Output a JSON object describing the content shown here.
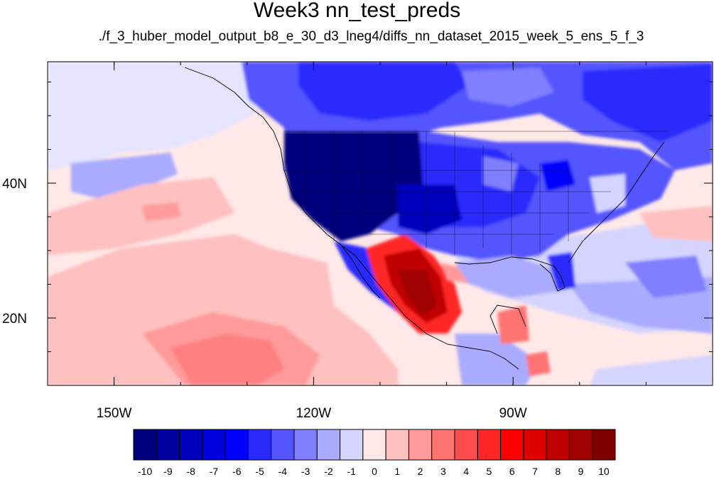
{
  "title": "Week3 nn_test_preds",
  "subtitle": "./f_3_huber_model_output_b8_e_30_d3_lneg4/diffs_nn_dataset_2015_week_5_ens_5_f_3",
  "map": {
    "lon_range": [
      -160,
      -60
    ],
    "lat_range": [
      10,
      58
    ],
    "x_tick_labels": [
      {
        "lon": -150,
        "label": "150W"
      },
      {
        "lon": -120,
        "label": "120W"
      },
      {
        "lon": -90,
        "label": "90W"
      }
    ],
    "y_tick_labels": [
      {
        "lat": 40,
        "label": "40N"
      },
      {
        "lat": 20,
        "label": "20N"
      }
    ]
  },
  "colorbar": {
    "labels": [
      "-10",
      "-9",
      "-8",
      "-7",
      "-6",
      "-5",
      "-4",
      "-3",
      "-2",
      "-1",
      "0",
      "1",
      "2",
      "3",
      "4",
      "5",
      "6",
      "7",
      "8",
      "9",
      "10"
    ],
    "colors": [
      "#00007f",
      "#00009f",
      "#0000bf",
      "#0000df",
      "#0000ff",
      "#2a2aff",
      "#5555ff",
      "#7f7fff",
      "#aaaaff",
      "#d4d4ff",
      "#ffe8e8",
      "#ffc0c0",
      "#ff9a9a",
      "#ff7373",
      "#ff4d4d",
      "#ff2626",
      "#ff0000",
      "#df0000",
      "#bf0000",
      "#9f0000",
      "#7f0000"
    ]
  }
}
